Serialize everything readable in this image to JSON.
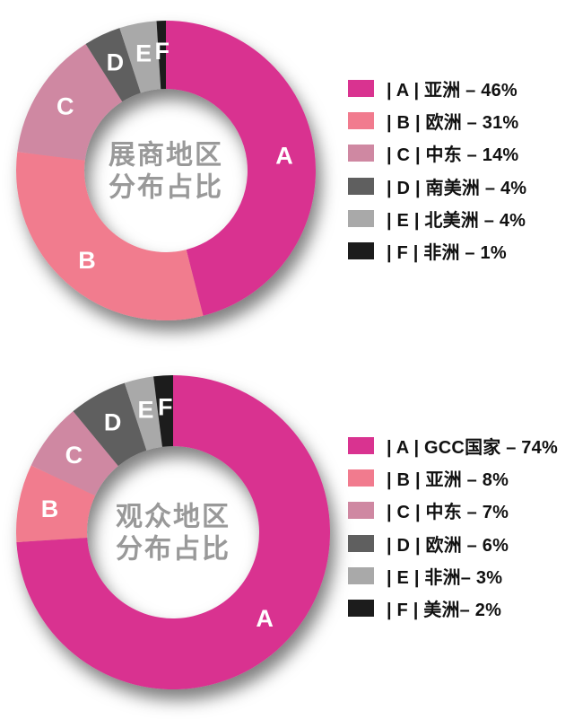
{
  "page": {
    "background_color": "#ffffff"
  },
  "theme": {
    "slice_label_color": "#ffffff",
    "center_text_color": "#999999",
    "legend_text_color": "#111111",
    "series_colors": [
      "#d93390",
      "#f17b8e",
      "#cf88a2",
      "#5f5f5f",
      "#a9a9a9",
      "#1c1c1c"
    ]
  },
  "chart_data": [
    {
      "type": "pie",
      "subtype": "donut",
      "name": "exhibitor-region-donut",
      "title": "展商地区分布占比",
      "center_title_lines": [
        "展商地区",
        "分布占比"
      ],
      "letters": [
        "A",
        "B",
        "C",
        "D",
        "E",
        "F"
      ],
      "labels": [
        "亚洲",
        "欧洲",
        "中东",
        "南美洲",
        "北美洲",
        "非洲"
      ],
      "values": [
        46,
        31,
        14,
        4,
        4,
        1
      ],
      "unit": "%",
      "colors": [
        "#d93390",
        "#f17b8e",
        "#cf88a2",
        "#5f5f5f",
        "#a9a9a9",
        "#1c1c1c"
      ],
      "legend_labels": [
        "| A | 亚洲 – 46%",
        "| B | 欧洲 – 31%",
        "| C | 中东 – 14%",
        "| D | 南美洲 – 4%",
        "| E | 北美洲 – 4%",
        "| F | 非洲 – 1%"
      ],
      "legend_position": "right",
      "start_angle_deg": 0,
      "direction": "clockwise"
    },
    {
      "type": "pie",
      "subtype": "donut",
      "name": "visitor-region-donut",
      "title": "观众地区分布占比",
      "center_title_lines": [
        "观众地区",
        "分布占比"
      ],
      "letters": [
        "A",
        "B",
        "C",
        "D",
        "E",
        "F"
      ],
      "labels": [
        "GCC国家",
        "亚洲",
        "中东",
        "欧洲",
        "非洲",
        "美洲"
      ],
      "values": [
        74,
        8,
        7,
        6,
        3,
        2
      ],
      "unit": "%",
      "colors": [
        "#d93390",
        "#f17b8e",
        "#cf88a2",
        "#5f5f5f",
        "#a9a9a9",
        "#1c1c1c"
      ],
      "legend_labels": [
        "| A | GCC国家 – 74%",
        "| B | 亚洲 – 8%",
        "| C | 中东 – 7%",
        "| D | 欧洲 – 6%",
        "| E | 非洲– 3%",
        "| F | 美洲– 2%"
      ],
      "legend_position": "right",
      "start_angle_deg": 0,
      "direction": "clockwise"
    }
  ]
}
